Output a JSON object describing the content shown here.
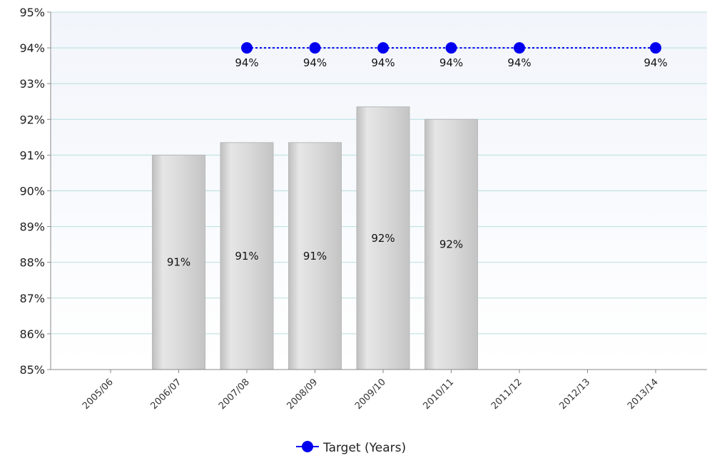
{
  "chart_data": {
    "type": "bar",
    "title": "",
    "xlabel": "",
    "ylabel": "",
    "ylim": [
      85,
      95
    ],
    "y_ticks": [
      "85%",
      "86%",
      "87%",
      "88%",
      "89%",
      "90%",
      "91%",
      "92%",
      "93%",
      "94%",
      "95%"
    ],
    "categories": [
      "2005/06",
      "2006/07",
      "2007/08",
      "2008/09",
      "2009/10",
      "2010/11",
      "2011/12",
      "2012/13",
      "2013/14"
    ],
    "series": [
      {
        "kind": "bar",
        "values": [
          null,
          91.0,
          91.35,
          91.35,
          92.35,
          92.0,
          null,
          null,
          null
        ],
        "labels": [
          null,
          "91%",
          "91%",
          "91%",
          "92%",
          "92%",
          null,
          null,
          null
        ],
        "color": "#d4d4d4"
      },
      {
        "kind": "line",
        "name": "Target (Years)",
        "values": [
          null,
          null,
          94,
          94,
          94,
          94,
          94,
          null,
          94
        ],
        "labels": [
          null,
          null,
          "94%",
          "94%",
          "94%",
          "94%",
          "94%",
          null,
          "94%"
        ],
        "color": "#0000ee",
        "line_style": "dotted"
      }
    ],
    "grid": true,
    "legend": "bottom-center"
  }
}
